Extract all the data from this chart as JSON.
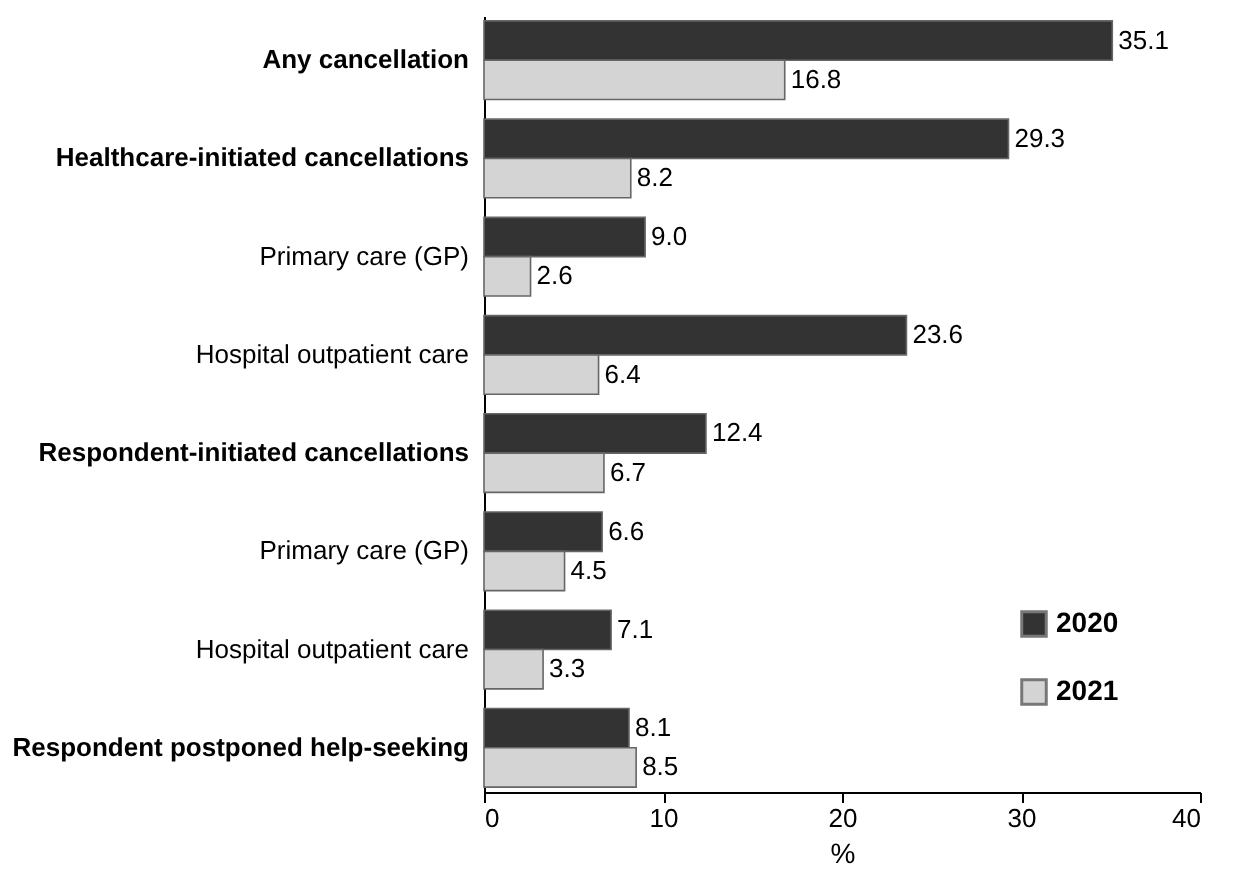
{
  "chart_data": {
    "type": "bar",
    "orientation": "horizontal",
    "xlabel": "%",
    "categories": [
      "Any cancellation",
      "Healthcare-initiated cancellations",
      "Primary care (GP)",
      "Hospital outpatient care",
      "Respondent-initiated cancellations",
      "Primary care (GP)",
      "Hospital outpatient care",
      "Respondent postponed help-seeking"
    ],
    "series": [
      {
        "name": "2020",
        "color": "#333333",
        "values": [
          35.1,
          29.3,
          9.0,
          23.6,
          12.4,
          6.6,
          7.1,
          8.1
        ],
        "value_labels": [
          "35.1",
          "29.3",
          "9.0",
          "23.6",
          "12.4",
          "6.6",
          "7.1",
          "8.1"
        ]
      },
      {
        "name": "2021",
        "color": "#d4d4d4",
        "values": [
          16.8,
          8.2,
          2.6,
          6.4,
          6.7,
          4.5,
          3.3,
          8.5
        ],
        "value_labels": [
          "16.8",
          "8.2",
          "2.6",
          "6.4",
          "6.7",
          "4.5",
          "3.3",
          "8.5"
        ]
      }
    ],
    "xlim": [
      0,
      40
    ],
    "xticks": [
      0,
      10,
      20,
      30,
      40
    ],
    "grid": false,
    "legend": "bottom right"
  }
}
